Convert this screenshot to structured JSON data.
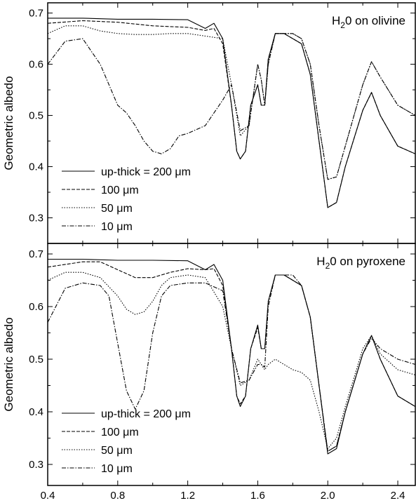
{
  "chart_data": [
    {
      "type": "line",
      "title": "H20 on olivine",
      "title_parts": {
        "prefix": "H",
        "subscript": "2",
        "suffix": "0 on olivine"
      },
      "xlabel": "",
      "ylabel": "Geometric albedo",
      "xlim": [
        0.4,
        2.5
      ],
      "ylim": [
        0.25,
        0.72
      ],
      "x_ticks": [
        0.4,
        0.8,
        1.2,
        1.6,
        2.0,
        2.4
      ],
      "x_tick_labels": [
        "",
        "",
        "",
        "",
        "",
        ""
      ],
      "y_ticks": [
        0.3,
        0.4,
        0.5,
        0.6,
        0.7
      ],
      "y_tick_labels": [
        "0.3",
        "0.4",
        "0.5",
        "0.6",
        "0.7"
      ],
      "grid": false,
      "legend_position": "bottom-left",
      "series": [
        {
          "name": "up-thick = 200 μm",
          "style": "solid",
          "x": [
            0.4,
            0.6,
            0.8,
            1.0,
            1.2,
            1.3,
            1.35,
            1.4,
            1.45,
            1.48,
            1.5,
            1.53,
            1.56,
            1.6,
            1.62,
            1.64,
            1.66,
            1.7,
            1.75,
            1.85,
            1.9,
            1.95,
            2.0,
            2.05,
            2.1,
            2.2,
            2.25,
            2.3,
            2.4,
            2.5
          ],
          "y": [
            0.69,
            0.69,
            0.688,
            0.688,
            0.687,
            0.67,
            0.68,
            0.65,
            0.52,
            0.43,
            0.415,
            0.43,
            0.52,
            0.56,
            0.52,
            0.52,
            0.61,
            0.66,
            0.66,
            0.64,
            0.58,
            0.45,
            0.32,
            0.33,
            0.4,
            0.51,
            0.545,
            0.5,
            0.44,
            0.425
          ]
        },
        {
          "name": "100 μm",
          "style": "dashed",
          "x": [
            0.4,
            0.6,
            0.8,
            1.0,
            1.2,
            1.3,
            1.35,
            1.4,
            1.45,
            1.48,
            1.5,
            1.53,
            1.56,
            1.6,
            1.62,
            1.64,
            1.66,
            1.7,
            1.75,
            1.85,
            1.9,
            1.95,
            2.0,
            2.05,
            2.1,
            2.2,
            2.25,
            2.3,
            2.4,
            2.5
          ],
          "y": [
            0.68,
            0.685,
            0.682,
            0.675,
            0.672,
            0.666,
            0.67,
            0.64,
            0.52,
            0.43,
            0.415,
            0.43,
            0.52,
            0.56,
            0.52,
            0.52,
            0.61,
            0.66,
            0.66,
            0.64,
            0.58,
            0.45,
            0.32,
            0.33,
            0.4,
            0.51,
            0.545,
            0.5,
            0.44,
            0.425
          ]
        },
        {
          "name": "50 μm",
          "style": "dotted",
          "x": [
            0.4,
            0.5,
            0.6,
            0.7,
            0.8,
            0.9,
            1.0,
            1.1,
            1.2,
            1.3,
            1.4,
            1.45,
            1.5,
            1.55,
            1.6,
            1.62,
            1.64,
            1.66,
            1.7,
            1.8,
            1.85,
            1.9,
            1.95,
            2.0,
            2.05,
            2.1,
            2.2,
            2.25,
            2.3,
            2.4,
            2.5
          ],
          "y": [
            0.66,
            0.675,
            0.675,
            0.665,
            0.66,
            0.658,
            0.658,
            0.66,
            0.66,
            0.655,
            0.65,
            0.56,
            0.46,
            0.48,
            0.6,
            0.57,
            0.52,
            0.6,
            0.66,
            0.66,
            0.65,
            0.6,
            0.48,
            0.375,
            0.38,
            0.44,
            0.56,
            0.605,
            0.575,
            0.52,
            0.5
          ]
        },
        {
          "name": "10 μm",
          "style": "dashdot",
          "x": [
            0.4,
            0.5,
            0.6,
            0.7,
            0.8,
            0.85,
            0.9,
            0.95,
            1.0,
            1.05,
            1.1,
            1.15,
            1.2,
            1.3,
            1.4,
            1.45,
            1.5,
            1.55,
            1.6,
            1.62,
            1.64,
            1.66,
            1.7,
            1.8,
            1.85,
            1.9,
            1.95,
            2.0,
            2.05,
            2.1,
            2.2,
            2.25,
            2.3,
            2.4,
            2.5
          ],
          "y": [
            0.6,
            0.645,
            0.65,
            0.6,
            0.52,
            0.505,
            0.48,
            0.45,
            0.43,
            0.425,
            0.435,
            0.46,
            0.465,
            0.48,
            0.53,
            0.56,
            0.47,
            0.48,
            0.6,
            0.57,
            0.52,
            0.6,
            0.66,
            0.66,
            0.65,
            0.6,
            0.48,
            0.375,
            0.38,
            0.44,
            0.56,
            0.605,
            0.575,
            0.52,
            0.5
          ]
        }
      ]
    },
    {
      "type": "line",
      "title": "H20 on pyroxene",
      "title_parts": {
        "prefix": "H",
        "subscript": "2",
        "suffix": "0 on pyroxene"
      },
      "xlabel": "",
      "ylabel": "Geometric albedo",
      "xlim": [
        0.4,
        2.5
      ],
      "ylim": [
        0.26,
        0.72
      ],
      "x_ticks": [
        0.4,
        0.8,
        1.2,
        1.6,
        2.0,
        2.4
      ],
      "x_tick_labels": [
        "0.4",
        "0.8",
        "1.2",
        "1.6",
        "2.0",
        "2.4"
      ],
      "y_ticks": [
        0.3,
        0.4,
        0.5,
        0.6,
        0.7
      ],
      "y_tick_labels": [
        "0.3",
        "0.4",
        "0.5",
        "0.6",
        "0.7"
      ],
      "grid": false,
      "legend_position": "bottom-left",
      "series": [
        {
          "name": "up-thick = 200 μm",
          "style": "solid",
          "x": [
            0.4,
            0.6,
            0.8,
            1.0,
            1.2,
            1.3,
            1.35,
            1.4,
            1.45,
            1.48,
            1.5,
            1.53,
            1.56,
            1.6,
            1.62,
            1.64,
            1.66,
            1.7,
            1.75,
            1.85,
            1.9,
            1.95,
            2.0,
            2.05,
            2.1,
            2.2,
            2.25,
            2.3,
            2.4,
            2.5
          ],
          "y": [
            0.69,
            0.69,
            0.688,
            0.688,
            0.687,
            0.67,
            0.68,
            0.65,
            0.52,
            0.43,
            0.41,
            0.43,
            0.52,
            0.565,
            0.52,
            0.52,
            0.61,
            0.66,
            0.66,
            0.64,
            0.58,
            0.45,
            0.32,
            0.33,
            0.4,
            0.51,
            0.545,
            0.5,
            0.43,
            0.41
          ]
        },
        {
          "name": "100 μm",
          "style": "dashed",
          "x": [
            0.4,
            0.6,
            0.7,
            0.8,
            0.9,
            1.0,
            1.1,
            1.2,
            1.3,
            1.35,
            1.4,
            1.45,
            1.48,
            1.5,
            1.53,
            1.56,
            1.6,
            1.62,
            1.64,
            1.66,
            1.7,
            1.75,
            1.85,
            1.9,
            1.95,
            2.0,
            2.05,
            2.1,
            2.2,
            2.25,
            2.3,
            2.4,
            2.5
          ],
          "y": [
            0.675,
            0.685,
            0.685,
            0.67,
            0.655,
            0.655,
            0.665,
            0.672,
            0.67,
            0.672,
            0.64,
            0.52,
            0.43,
            0.415,
            0.43,
            0.52,
            0.56,
            0.52,
            0.52,
            0.61,
            0.66,
            0.66,
            0.64,
            0.58,
            0.45,
            0.325,
            0.335,
            0.4,
            0.51,
            0.545,
            0.5,
            0.43,
            0.41
          ]
        },
        {
          "name": "50 μm",
          "style": "dotted",
          "x": [
            0.4,
            0.5,
            0.6,
            0.7,
            0.8,
            0.85,
            0.9,
            0.95,
            1.0,
            1.05,
            1.1,
            1.2,
            1.3,
            1.4,
            1.45,
            1.5,
            1.55,
            1.6,
            1.62,
            1.64,
            1.66,
            1.7,
            1.75,
            1.8,
            1.85,
            1.9,
            1.95,
            2.0,
            2.05,
            2.1,
            2.2,
            2.25,
            2.3,
            2.4,
            2.5
          ],
          "y": [
            0.65,
            0.665,
            0.665,
            0.655,
            0.62,
            0.595,
            0.585,
            0.59,
            0.61,
            0.64,
            0.655,
            0.66,
            0.655,
            0.6,
            0.52,
            0.45,
            0.46,
            0.5,
            0.49,
            0.48,
            0.49,
            0.5,
            0.49,
            0.48,
            0.475,
            0.46,
            0.4,
            0.33,
            0.35,
            0.41,
            0.52,
            0.545,
            0.51,
            0.48,
            0.47
          ]
        },
        {
          "name": "10 μm",
          "style": "dashdot",
          "x": [
            0.4,
            0.5,
            0.6,
            0.7,
            0.75,
            0.8,
            0.85,
            0.9,
            0.95,
            1.0,
            1.05,
            1.1,
            1.2,
            1.3,
            1.4,
            1.45,
            1.5,
            1.55,
            1.6,
            1.62,
            1.64,
            1.66,
            1.7,
            1.8,
            1.85,
            1.9,
            1.95,
            2.0,
            2.05,
            2.1,
            2.2,
            2.25,
            2.3,
            2.4,
            2.5
          ],
          "y": [
            0.57,
            0.635,
            0.645,
            0.64,
            0.62,
            0.53,
            0.44,
            0.405,
            0.44,
            0.55,
            0.62,
            0.64,
            0.645,
            0.645,
            0.63,
            0.52,
            0.455,
            0.46,
            0.49,
            0.49,
            0.485,
            0.6,
            0.66,
            0.66,
            0.64,
            0.58,
            0.45,
            0.325,
            0.335,
            0.4,
            0.51,
            0.54,
            0.52,
            0.5,
            0.49
          ]
        }
      ]
    }
  ]
}
